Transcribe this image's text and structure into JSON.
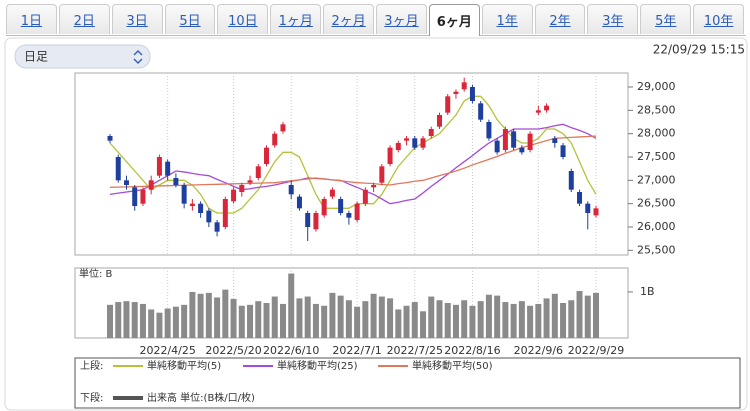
{
  "tabs": [
    {
      "label": "1日"
    },
    {
      "label": "2日"
    },
    {
      "label": "3日"
    },
    {
      "label": "5日"
    },
    {
      "label": "10日"
    },
    {
      "label": "1ヶ月"
    },
    {
      "label": "2ヶ月"
    },
    {
      "label": "3ヶ月"
    },
    {
      "label": "6ヶ月",
      "active": true
    },
    {
      "label": "1年"
    },
    {
      "label": "2年"
    },
    {
      "label": "3年"
    },
    {
      "label": "5年"
    },
    {
      "label": "10年"
    }
  ],
  "period_select": "日足",
  "timestamp": "22/09/29 15:15",
  "chart_data": {
    "type": "candlestick",
    "up_color": "#d9263a",
    "down_color": "#1f3f9e",
    "grid": true,
    "ylim": [
      25400,
      29300
    ],
    "yticks": [
      {
        "value": 25500,
        "label": "25,500"
      },
      {
        "value": 26000,
        "label": "26,000"
      },
      {
        "value": 26500,
        "label": "26,500"
      },
      {
        "value": 27000,
        "label": "27,000"
      },
      {
        "value": 27500,
        "label": "27,500"
      },
      {
        "value": 28000,
        "label": "28,000"
      },
      {
        "value": 28500,
        "label": "28,500"
      },
      {
        "value": 29000,
        "label": "29,000"
      }
    ],
    "categories": [
      null,
      null,
      null,
      null,
      null,
      null,
      null,
      "2022/4/25",
      null,
      null,
      null,
      null,
      null,
      null,
      null,
      "2022/5/20",
      null,
      null,
      null,
      null,
      null,
      null,
      "2022/6/10",
      null,
      null,
      null,
      null,
      null,
      null,
      null,
      "2022/7/1",
      null,
      null,
      null,
      null,
      null,
      null,
      "2022/7/25",
      null,
      null,
      null,
      null,
      null,
      null,
      "2022/8/16",
      null,
      null,
      null,
      null,
      null,
      null,
      null,
      "2022/9/6",
      null,
      null,
      null,
      null,
      null,
      null,
      "2022/9/29"
    ],
    "candles": [
      [
        27950,
        27990,
        27800,
        27850
      ],
      [
        27500,
        27550,
        26950,
        27000
      ],
      [
        27000,
        27100,
        26800,
        26900
      ],
      [
        26850,
        26900,
        26350,
        26450
      ],
      [
        26500,
        26850,
        26450,
        26800
      ],
      [
        26800,
        27100,
        26700,
        27000
      ],
      [
        27100,
        27550,
        27050,
        27500
      ],
      [
        27400,
        27450,
        27000,
        27100
      ],
      [
        27050,
        27150,
        26850,
        26900
      ],
      [
        26900,
        26950,
        26400,
        26500
      ],
      [
        26450,
        26600,
        26350,
        26500
      ],
      [
        26500,
        26550,
        26200,
        26300
      ],
      [
        26350,
        26400,
        26000,
        26100
      ],
      [
        26100,
        26150,
        25800,
        25900
      ],
      [
        26000,
        26650,
        25950,
        26600
      ],
      [
        26550,
        26850,
        26500,
        26800
      ],
      [
        26750,
        26950,
        26650,
        26900
      ],
      [
        26950,
        27100,
        26900,
        27000
      ],
      [
        27050,
        27350,
        27000,
        27300
      ],
      [
        27350,
        27750,
        27300,
        27700
      ],
      [
        27750,
        28050,
        27700,
        28000
      ],
      [
        28050,
        28250,
        28000,
        28200
      ],
      [
        26900,
        27000,
        26600,
        26700
      ],
      [
        26650,
        26700,
        26350,
        26400
      ],
      [
        26300,
        26350,
        25700,
        26000
      ],
      [
        25950,
        26350,
        25900,
        26300
      ],
      [
        26250,
        26650,
        26200,
        26600
      ],
      [
        26650,
        26850,
        26600,
        26800
      ],
      [
        26600,
        26650,
        26250,
        26300
      ],
      [
        26300,
        26350,
        26050,
        26200
      ],
      [
        26150,
        26550,
        26100,
        26500
      ],
      [
        26500,
        26850,
        26450,
        26800
      ],
      [
        26850,
        26950,
        26750,
        26900
      ],
      [
        26950,
        27350,
        26900,
        27300
      ],
      [
        27350,
        27750,
        27300,
        27700
      ],
      [
        27650,
        27850,
        27600,
        27800
      ],
      [
        27850,
        27950,
        27750,
        27900
      ],
      [
        27900,
        27950,
        27650,
        27700
      ],
      [
        27700,
        27950,
        27650,
        27900
      ],
      [
        27950,
        28150,
        27900,
        28100
      ],
      [
        28150,
        28450,
        28100,
        28400
      ],
      [
        28450,
        28850,
        28400,
        28800
      ],
      [
        28850,
        28950,
        28750,
        28900
      ],
      [
        28950,
        29200,
        28900,
        29100
      ],
      [
        29000,
        29050,
        28650,
        28700
      ],
      [
        28650,
        28700,
        28250,
        28300
      ],
      [
        28250,
        28300,
        27850,
        27900
      ],
      [
        27850,
        27900,
        27550,
        27600
      ],
      [
        27650,
        28150,
        27600,
        28100
      ],
      [
        28050,
        28100,
        27650,
        27700
      ],
      [
        27700,
        27750,
        27550,
        27600
      ],
      [
        27650,
        28050,
        27600,
        28000
      ],
      [
        28450,
        28600,
        28400,
        28500
      ],
      [
        28500,
        28650,
        28450,
        28600
      ],
      [
        27900,
        27950,
        27700,
        27800
      ],
      [
        27750,
        27800,
        27450,
        27500
      ],
      [
        27200,
        27250,
        26750,
        26800
      ],
      [
        26750,
        26800,
        26450,
        26500
      ],
      [
        26500,
        26550,
        25950,
        26300
      ],
      [
        26250,
        26450,
        26200,
        26400
      ]
    ],
    "series": [
      {
        "name": "単純移動平均(5)",
        "color": "#b5c23a",
        "values": [
          27800,
          27600,
          27400,
          27200,
          27000,
          26800,
          26900,
          27000,
          27000,
          27000,
          26900,
          26700,
          26400,
          26300,
          26300,
          26300,
          26400,
          26600,
          26800,
          27100,
          27400,
          27600,
          27600,
          27500,
          27100,
          26700,
          26400,
          26400,
          26400,
          26400,
          26500,
          26500,
          26500,
          26700,
          27000,
          27300,
          27500,
          27700,
          27800,
          27900,
          28000,
          28200,
          28400,
          28700,
          28800,
          28800,
          28600,
          28300,
          28100,
          27900,
          27800,
          27800,
          27900,
          28100,
          28100,
          28000,
          27800,
          27400,
          27000,
          26700
        ]
      },
      {
        "name": "単純移動平均(25)",
        "color": "#a64ad8",
        "values": [
          26700,
          26725,
          26750,
          26775,
          26800,
          26900,
          27000,
          27100,
          27200,
          27180,
          27150,
          27120,
          27100,
          27020,
          26950,
          26870,
          26800,
          26820,
          26850,
          26870,
          26900,
          26940,
          26980,
          27010,
          27050,
          27040,
          27030,
          27010,
          27000,
          26920,
          26850,
          26770,
          26700,
          26600,
          26500,
          26530,
          26570,
          26600,
          26730,
          26870,
          27000,
          27130,
          27270,
          27400,
          27530,
          27670,
          27800,
          27900,
          28000,
          28100,
          28100,
          28100,
          28100,
          28130,
          28170,
          28200,
          28130,
          28070,
          28000,
          27900
        ]
      },
      {
        "name": "単純移動平均(50)",
        "color": "#e0785a",
        "values": [
          26850,
          26855,
          26860,
          26865,
          26870,
          26875,
          26880,
          26885,
          26890,
          26895,
          26900,
          26905,
          26910,
          26915,
          26920,
          26925,
          26930,
          26935,
          26940,
          26945,
          26950,
          26970,
          26990,
          27010,
          27030,
          27050,
          27030,
          27010,
          26990,
          26970,
          26950,
          26940,
          26930,
          26910,
          26900,
          26930,
          26950,
          26980,
          27000,
          27050,
          27100,
          27150,
          27200,
          27260,
          27330,
          27390,
          27450,
          27510,
          27580,
          27640,
          27700,
          27750,
          27800,
          27850,
          27900,
          27910,
          27920,
          27930,
          27940,
          27950
        ]
      }
    ],
    "legend_upper": "上段:",
    "legend_lower": "下段:",
    "volume": {
      "name": "出来高 単位:(B株/口/枚)",
      "unit_label": "単位: B",
      "color": "#8a8a8a",
      "ylim": [
        0,
        1.52
      ],
      "yticks": [
        {
          "value": 1,
          "label": "1B"
        }
      ],
      "values": [
        0.72,
        0.78,
        0.8,
        0.78,
        0.74,
        0.62,
        0.55,
        0.64,
        0.68,
        0.72,
        1.0,
        0.96,
        0.98,
        0.88,
        1.05,
        0.85,
        0.7,
        0.72,
        0.8,
        0.76,
        0.9,
        0.74,
        1.4,
        0.86,
        0.9,
        0.74,
        0.7,
        0.98,
        0.92,
        0.82,
        0.68,
        0.8,
        0.96,
        0.9,
        0.86,
        0.62,
        0.7,
        0.78,
        0.58,
        0.9,
        0.82,
        0.76,
        0.72,
        0.82,
        0.7,
        0.8,
        0.94,
        0.92,
        0.78,
        0.74,
        0.8,
        0.7,
        0.74,
        0.86,
        0.96,
        0.76,
        0.82,
        1.02,
        0.92,
        0.98
      ]
    }
  }
}
